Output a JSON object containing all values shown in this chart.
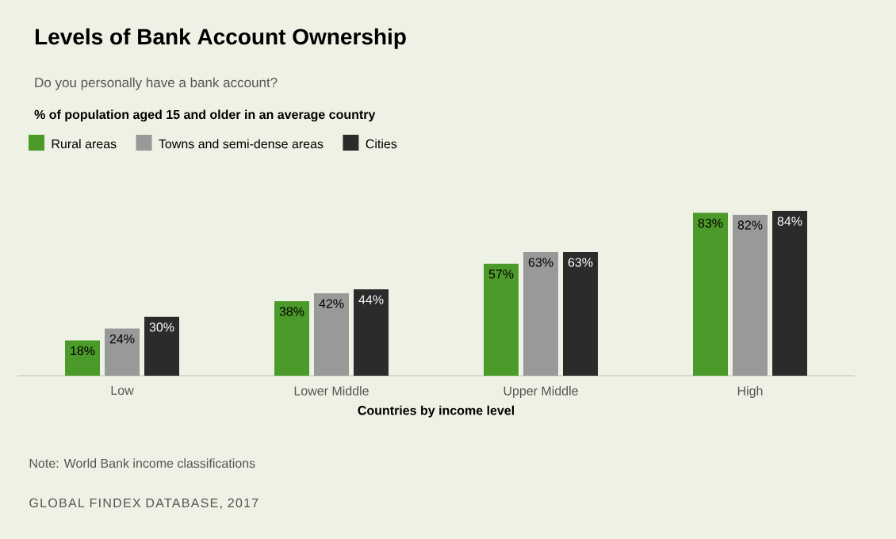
{
  "chart_data": {
    "type": "bar",
    "title": "Levels of Bank Account Ownership",
    "subtitle": "Do you personally have a bank account?",
    "legend_title": "% of population aged 15 and older in an average country",
    "xlabel": "Countries by income level",
    "categories": [
      "Low",
      "Lower Middle",
      "Upper Middle",
      "High"
    ],
    "series": [
      {
        "name": "Rural areas",
        "color": "#4c9a2a",
        "values": [
          18,
          38,
          57,
          83
        ],
        "value_labels": [
          "18%",
          "38%",
          "57%",
          "83%"
        ]
      },
      {
        "name": "Towns and semi-dense areas",
        "color": "#999999",
        "values": [
          24,
          42,
          63,
          82
        ],
        "value_labels": [
          "24%",
          "42%",
          "63%",
          "82%"
        ]
      },
      {
        "name": "Cities",
        "color": "#2b2b2b",
        "values": [
          30,
          44,
          63,
          84
        ],
        "value_labels": [
          "30%",
          "44%",
          "63%",
          "84%"
        ]
      }
    ],
    "legend": "top left",
    "annotations": [
      "Note: World Bank income classifications",
      "GLOBAL FINDEX DATABASE, 2017"
    ]
  }
}
